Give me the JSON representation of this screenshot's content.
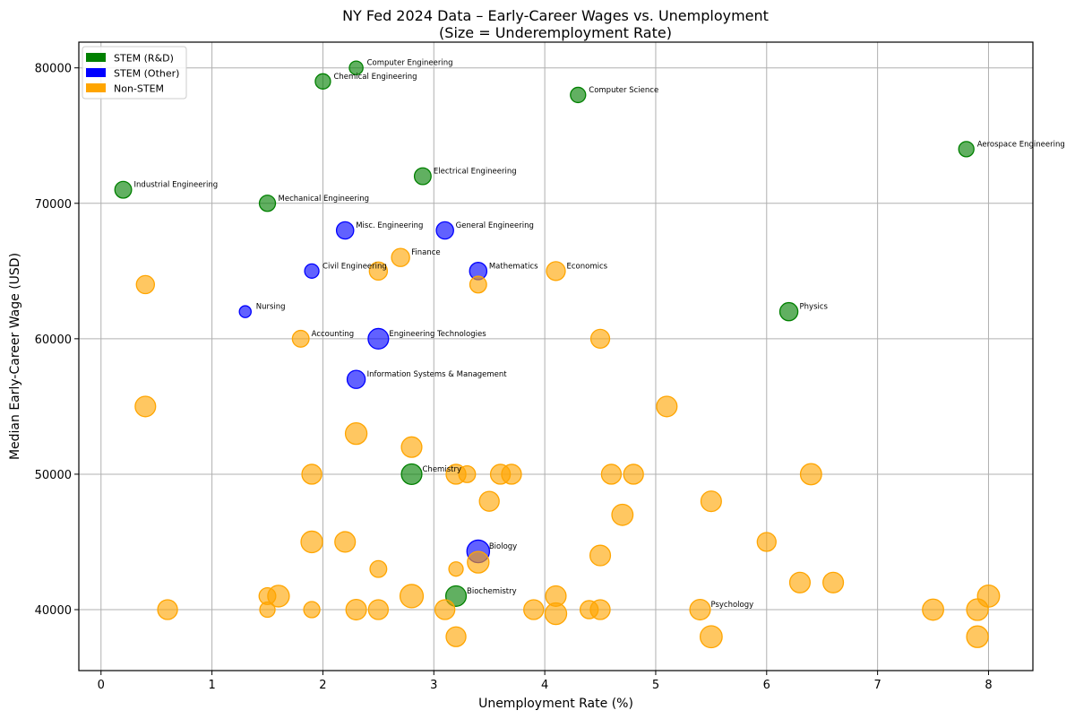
{
  "chart_data": {
    "type": "scatter",
    "title_line1": "NY Fed 2024 Data – Early-Career Wages vs. Unemployment",
    "title_line2": "(Size = Underemployment Rate)",
    "xlabel": "Unemployment Rate (%)",
    "ylabel": "Median Early-Career Wage (USD)",
    "xlim": [
      -0.2,
      8.4
    ],
    "ylim": [
      35500,
      81900
    ],
    "xticks": [
      0,
      1,
      2,
      3,
      4,
      5,
      6,
      7,
      8
    ],
    "yticks": [
      40000,
      50000,
      60000,
      70000,
      80000
    ],
    "grid": true,
    "legend_position": "top-left",
    "categories": [
      {
        "key": "rd",
        "name": "STEM (R&D)",
        "color": "#008000"
      },
      {
        "key": "other",
        "name": "STEM (Other)",
        "color": "#0000ff"
      },
      {
        "key": "non",
        "name": "Non-STEM",
        "color": "#ffa500"
      }
    ],
    "points": [
      {
        "x": 2.3,
        "y": 80000,
        "cat": "rd",
        "under": 20,
        "label": "Computer Engineering"
      },
      {
        "x": 2.0,
        "y": 79000,
        "cat": "rd",
        "under": 25,
        "label": "Chemical Engineering"
      },
      {
        "x": 4.3,
        "y": 78000,
        "cat": "rd",
        "under": 25,
        "label": "Computer Science"
      },
      {
        "x": 7.8,
        "y": 74000,
        "cat": "rd",
        "under": 25,
        "label": "Aerospace Engineering"
      },
      {
        "x": 2.9,
        "y": 72000,
        "cat": "rd",
        "under": 30,
        "label": "Electrical Engineering"
      },
      {
        "x": 0.2,
        "y": 71000,
        "cat": "rd",
        "under": 30,
        "label": "Industrial Engineering"
      },
      {
        "x": 1.5,
        "y": 70000,
        "cat": "rd",
        "under": 28,
        "label": "Mechanical Engineering"
      },
      {
        "x": 2.2,
        "y": 68000,
        "cat": "other",
        "under": 32,
        "label": "Misc. Engineering"
      },
      {
        "x": 3.1,
        "y": 68000,
        "cat": "other",
        "under": 32,
        "label": "General Engineering"
      },
      {
        "x": 2.7,
        "y": 66000,
        "cat": "non",
        "under": 35,
        "label": "Finance"
      },
      {
        "x": 1.9,
        "y": 65000,
        "cat": "other",
        "under": 22,
        "label": "Civil Engineering"
      },
      {
        "x": 3.4,
        "y": 65000,
        "cat": "other",
        "under": 32,
        "label": "Mathematics"
      },
      {
        "x": 4.1,
        "y": 65000,
        "cat": "non",
        "under": 38,
        "label": "Economics"
      },
      {
        "x": 1.3,
        "y": 62000,
        "cat": "other",
        "under": 15,
        "label": "Nursing"
      },
      {
        "x": 6.2,
        "y": 62000,
        "cat": "rd",
        "under": 35,
        "label": "Physics"
      },
      {
        "x": 1.8,
        "y": 60000,
        "cat": "non",
        "under": 30,
        "label": "Accounting"
      },
      {
        "x": 2.5,
        "y": 60000,
        "cat": "other",
        "under": 45,
        "label": "Engineering Technologies"
      },
      {
        "x": 2.3,
        "y": 57000,
        "cat": "other",
        "under": 35,
        "label": "Information Systems & Management"
      },
      {
        "x": 2.8,
        "y": 50000,
        "cat": "rd",
        "under": 45,
        "label": "Chemistry"
      },
      {
        "x": 3.4,
        "y": 44300,
        "cat": "other",
        "under": 55,
        "label": "Biology"
      },
      {
        "x": 3.2,
        "y": 41000,
        "cat": "rd",
        "under": 45,
        "label": "Biochemistry"
      },
      {
        "x": 5.4,
        "y": 40000,
        "cat": "non",
        "under": 45,
        "label": "Psychology"
      },
      {
        "x": 0.4,
        "y": 64000,
        "cat": "non",
        "under": 35,
        "label": ""
      },
      {
        "x": 2.5,
        "y": 65000,
        "cat": "non",
        "under": 35,
        "label": ""
      },
      {
        "x": 3.4,
        "y": 64000,
        "cat": "non",
        "under": 30,
        "label": ""
      },
      {
        "x": 4.5,
        "y": 60000,
        "cat": "non",
        "under": 38,
        "label": ""
      },
      {
        "x": 0.4,
        "y": 55000,
        "cat": "non",
        "under": 45,
        "label": ""
      },
      {
        "x": 5.1,
        "y": 55000,
        "cat": "non",
        "under": 45,
        "label": ""
      },
      {
        "x": 2.3,
        "y": 53000,
        "cat": "non",
        "under": 50,
        "label": ""
      },
      {
        "x": 2.8,
        "y": 52000,
        "cat": "non",
        "under": 45,
        "label": ""
      },
      {
        "x": 1.9,
        "y": 50000,
        "cat": "non",
        "under": 42,
        "label": ""
      },
      {
        "x": 3.2,
        "y": 50000,
        "cat": "non",
        "under": 42,
        "label": ""
      },
      {
        "x": 3.3,
        "y": 50000,
        "cat": "non",
        "under": 30,
        "label": ""
      },
      {
        "x": 3.6,
        "y": 50000,
        "cat": "non",
        "under": 42,
        "label": ""
      },
      {
        "x": 3.7,
        "y": 50000,
        "cat": "non",
        "under": 42,
        "label": ""
      },
      {
        "x": 4.6,
        "y": 50000,
        "cat": "non",
        "under": 42,
        "label": ""
      },
      {
        "x": 4.8,
        "y": 50000,
        "cat": "non",
        "under": 42,
        "label": ""
      },
      {
        "x": 6.4,
        "y": 50000,
        "cat": "non",
        "under": 48,
        "label": ""
      },
      {
        "x": 3.5,
        "y": 48000,
        "cat": "non",
        "under": 42,
        "label": ""
      },
      {
        "x": 5.5,
        "y": 48000,
        "cat": "non",
        "under": 45,
        "label": ""
      },
      {
        "x": 4.7,
        "y": 47000,
        "cat": "non",
        "under": 48,
        "label": ""
      },
      {
        "x": 1.9,
        "y": 45000,
        "cat": "non",
        "under": 50,
        "label": ""
      },
      {
        "x": 2.2,
        "y": 45000,
        "cat": "non",
        "under": 45,
        "label": ""
      },
      {
        "x": 6.0,
        "y": 45000,
        "cat": "non",
        "under": 38,
        "label": ""
      },
      {
        "x": 4.5,
        "y": 44000,
        "cat": "non",
        "under": 45,
        "label": ""
      },
      {
        "x": 3.4,
        "y": 43500,
        "cat": "non",
        "under": 50,
        "label": ""
      },
      {
        "x": 2.5,
        "y": 43000,
        "cat": "non",
        "under": 30,
        "label": ""
      },
      {
        "x": 3.2,
        "y": 43000,
        "cat": "non",
        "under": 22,
        "label": ""
      },
      {
        "x": 6.3,
        "y": 42000,
        "cat": "non",
        "under": 45,
        "label": ""
      },
      {
        "x": 6.6,
        "y": 42000,
        "cat": "non",
        "under": 45,
        "label": ""
      },
      {
        "x": 1.5,
        "y": 41000,
        "cat": "non",
        "under": 30,
        "label": ""
      },
      {
        "x": 1.6,
        "y": 41000,
        "cat": "non",
        "under": 50,
        "label": ""
      },
      {
        "x": 2.8,
        "y": 41000,
        "cat": "non",
        "under": 58,
        "label": ""
      },
      {
        "x": 4.1,
        "y": 41000,
        "cat": "non",
        "under": 45,
        "label": ""
      },
      {
        "x": 8.0,
        "y": 41000,
        "cat": "non",
        "under": 52,
        "label": ""
      },
      {
        "x": 0.6,
        "y": 40000,
        "cat": "non",
        "under": 42,
        "label": ""
      },
      {
        "x": 1.5,
        "y": 40000,
        "cat": "non",
        "under": 25,
        "label": ""
      },
      {
        "x": 1.9,
        "y": 40000,
        "cat": "non",
        "under": 28,
        "label": ""
      },
      {
        "x": 2.3,
        "y": 40000,
        "cat": "non",
        "under": 45,
        "label": ""
      },
      {
        "x": 2.5,
        "y": 40000,
        "cat": "non",
        "under": 42,
        "label": ""
      },
      {
        "x": 3.1,
        "y": 40000,
        "cat": "non",
        "under": 42,
        "label": ""
      },
      {
        "x": 3.9,
        "y": 40000,
        "cat": "non",
        "under": 42,
        "label": ""
      },
      {
        "x": 4.1,
        "y": 39700,
        "cat": "non",
        "under": 50,
        "label": ""
      },
      {
        "x": 4.4,
        "y": 40000,
        "cat": "non",
        "under": 35,
        "label": ""
      },
      {
        "x": 4.5,
        "y": 40000,
        "cat": "non",
        "under": 42,
        "label": ""
      },
      {
        "x": 7.5,
        "y": 40000,
        "cat": "non",
        "under": 48,
        "label": ""
      },
      {
        "x": 7.9,
        "y": 40000,
        "cat": "non",
        "under": 50,
        "label": ""
      },
      {
        "x": 3.2,
        "y": 38000,
        "cat": "non",
        "under": 42,
        "label": ""
      },
      {
        "x": 5.5,
        "y": 38000,
        "cat": "non",
        "under": 52,
        "label": ""
      },
      {
        "x": 7.9,
        "y": 38000,
        "cat": "non",
        "under": 50,
        "label": ""
      }
    ]
  }
}
